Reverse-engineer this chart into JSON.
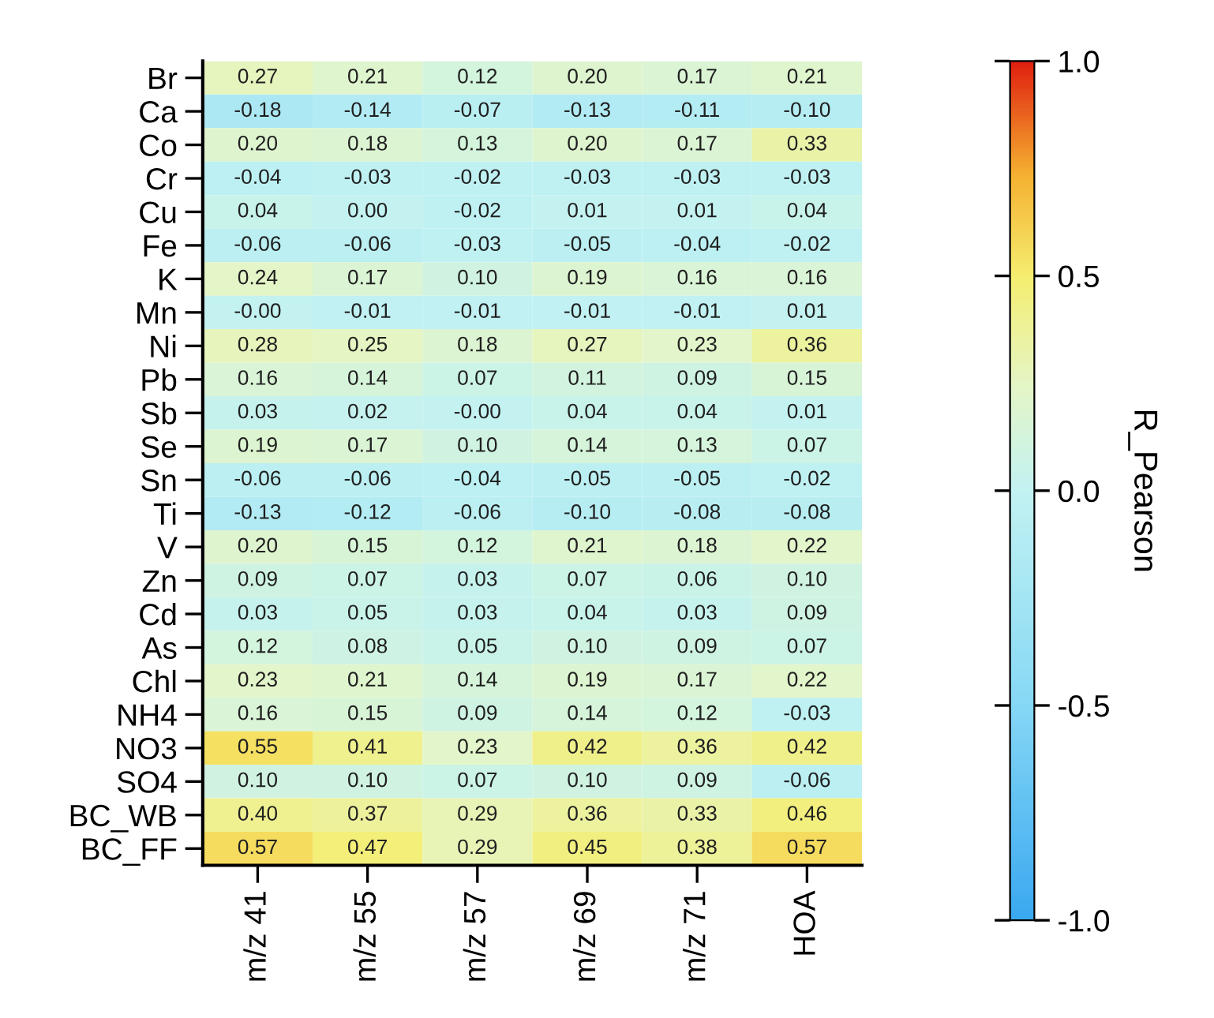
{
  "chart_data": {
    "type": "heatmap",
    "categories": [
      "m/z 41",
      "m/z 55",
      "m/z 57",
      "m/z 69",
      "m/z 71",
      "HOA"
    ],
    "y_categories": [
      "Br",
      "Ca",
      "Co",
      "Cr",
      "Cu",
      "Fe",
      "K",
      "Mn",
      "Ni",
      "Pb",
      "Sb",
      "Se",
      "Sn",
      "Ti",
      "V",
      "Zn",
      "Cd",
      "As",
      "Chl",
      "NH4",
      "NO3",
      "SO4",
      "BC_WB",
      "BC_FF"
    ],
    "cells": [
      [
        0.27,
        0.21,
        0.12,
        0.2,
        0.17,
        0.21
      ],
      [
        -0.18,
        -0.14,
        -0.07,
        -0.13,
        -0.11,
        -0.1
      ],
      [
        0.2,
        0.18,
        0.13,
        0.2,
        0.17,
        0.33
      ],
      [
        -0.04,
        -0.03,
        -0.02,
        -0.03,
        -0.03,
        -0.03
      ],
      [
        0.04,
        0.0,
        -0.02,
        0.01,
        0.01,
        0.04
      ],
      [
        -0.06,
        -0.06,
        -0.03,
        -0.05,
        -0.04,
        -0.02
      ],
      [
        0.24,
        0.17,
        0.1,
        0.19,
        0.16,
        0.16
      ],
      [
        -0.0,
        -0.01,
        -0.01,
        -0.01,
        -0.01,
        0.01
      ],
      [
        0.28,
        0.25,
        0.18,
        0.27,
        0.23,
        0.36
      ],
      [
        0.16,
        0.14,
        0.07,
        0.11,
        0.09,
        0.15
      ],
      [
        0.03,
        0.02,
        -0.0,
        0.04,
        0.04,
        0.01
      ],
      [
        0.19,
        0.17,
        0.1,
        0.14,
        0.13,
        0.07
      ],
      [
        -0.06,
        -0.06,
        -0.04,
        -0.05,
        -0.05,
        -0.02
      ],
      [
        -0.13,
        -0.12,
        -0.06,
        -0.1,
        -0.08,
        -0.08
      ],
      [
        0.2,
        0.15,
        0.12,
        0.21,
        0.18,
        0.22
      ],
      [
        0.09,
        0.07,
        0.03,
        0.07,
        0.06,
        0.1
      ],
      [
        0.03,
        0.05,
        0.03,
        0.04,
        0.03,
        0.09
      ],
      [
        0.12,
        0.08,
        0.05,
        0.1,
        0.09,
        0.07
      ],
      [
        0.23,
        0.21,
        0.14,
        0.19,
        0.17,
        0.22
      ],
      [
        0.16,
        0.15,
        0.09,
        0.14,
        0.12,
        -0.03
      ],
      [
        0.55,
        0.41,
        0.23,
        0.42,
        0.36,
        0.42
      ],
      [
        0.1,
        0.1,
        0.07,
        0.1,
        0.09,
        -0.06
      ],
      [
        0.4,
        0.37,
        0.29,
        0.36,
        0.33,
        0.46
      ],
      [
        0.57,
        0.47,
        0.29,
        0.45,
        0.38,
        0.57
      ]
    ],
    "cell_labels": [
      [
        "0.27",
        "0.21",
        "0.12",
        "0.20",
        "0.17",
        "0.21"
      ],
      [
        "-0.18",
        "-0.14",
        "-0.07",
        "-0.13",
        "-0.11",
        "-0.10"
      ],
      [
        "0.20",
        "0.18",
        "0.13",
        "0.20",
        "0.17",
        "0.33"
      ],
      [
        "-0.04",
        "-0.03",
        "-0.02",
        "-0.03",
        "-0.03",
        "-0.03"
      ],
      [
        "0.04",
        "0.00",
        "-0.02",
        "0.01",
        "0.01",
        "0.04"
      ],
      [
        "-0.06",
        "-0.06",
        "-0.03",
        "-0.05",
        "-0.04",
        "-0.02"
      ],
      [
        "0.24",
        "0.17",
        "0.10",
        "0.19",
        "0.16",
        "0.16"
      ],
      [
        "-0.00",
        "-0.01",
        "-0.01",
        "-0.01",
        "-0.01",
        "0.01"
      ],
      [
        "0.28",
        "0.25",
        "0.18",
        "0.27",
        "0.23",
        "0.36"
      ],
      [
        "0.16",
        "0.14",
        "0.07",
        "0.11",
        "0.09",
        "0.15"
      ],
      [
        "0.03",
        "0.02",
        "-0.00",
        "0.04",
        "0.04",
        "0.01"
      ],
      [
        "0.19",
        "0.17",
        "0.10",
        "0.14",
        "0.13",
        "0.07"
      ],
      [
        "-0.06",
        "-0.06",
        "-0.04",
        "-0.05",
        "-0.05",
        "-0.02"
      ],
      [
        "-0.13",
        "-0.12",
        "-0.06",
        "-0.10",
        "-0.08",
        "-0.08"
      ],
      [
        "0.20",
        "0.15",
        "0.12",
        "0.21",
        "0.18",
        "0.22"
      ],
      [
        "0.09",
        "0.07",
        "0.03",
        "0.07",
        "0.06",
        "0.10"
      ],
      [
        "0.03",
        "0.05",
        "0.03",
        "0.04",
        "0.03",
        "0.09"
      ],
      [
        "0.12",
        "0.08",
        "0.05",
        "0.10",
        "0.09",
        "0.07"
      ],
      [
        "0.23",
        "0.21",
        "0.14",
        "0.19",
        "0.17",
        "0.22"
      ],
      [
        "0.16",
        "0.15",
        "0.09",
        "0.14",
        "0.12",
        "-0.03"
      ],
      [
        "0.55",
        "0.41",
        "0.23",
        "0.42",
        "0.36",
        "0.42"
      ],
      [
        "0.10",
        "0.10",
        "0.07",
        "0.10",
        "0.09",
        "-0.06"
      ],
      [
        "0.40",
        "0.37",
        "0.29",
        "0.36",
        "0.33",
        "0.46"
      ],
      [
        "0.57",
        "0.47",
        "0.29",
        "0.45",
        "0.38",
        "0.57"
      ]
    ],
    "clabel": "R_Pearson",
    "clim": [
      -1.0,
      1.0
    ],
    "cticks": [
      {
        "value": -1.0,
        "label": "-1.0"
      },
      {
        "value": -0.5,
        "label": "-0.5"
      },
      {
        "value": 0.0,
        "label": "0.0"
      },
      {
        "value": 0.5,
        "label": "0.5"
      },
      {
        "value": 1.0,
        "label": "1.0"
      }
    ]
  }
}
